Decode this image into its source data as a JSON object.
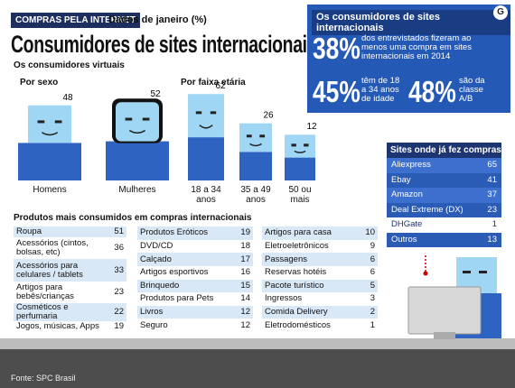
{
  "header": {
    "tag": "COMPRAS PELA INTERNET",
    "subtitle": "Dados de janeiro (%)",
    "title": "Consumidores de sites internacionais",
    "section": "Os consumidores virtuais",
    "logo": "G"
  },
  "by_sex": {
    "title": "Por sexo",
    "categories": [
      "Homens",
      "Mulheres"
    ],
    "values": [
      48,
      52
    ]
  },
  "by_age": {
    "title": "Por faixa etária",
    "categories": [
      "18 a 34 anos",
      "35 a 49 anos",
      "50 ou mais"
    ],
    "values": [
      62,
      26,
      12
    ]
  },
  "intl_box": {
    "title": "Os consumidores de sites internacionais",
    "stats": [
      {
        "big": "38%",
        "text": "dos entrevistados fizeram ao menos uma compra em sites internacionais em 2014"
      },
      {
        "big": "45%",
        "text": "têm de 18 a 34 anos de idade"
      },
      {
        "big": "48%",
        "text": "são da classe A/B"
      }
    ]
  },
  "sites": {
    "title": "Sites onde já fez compras",
    "rows": [
      [
        "Aliexpress",
        65
      ],
      [
        "Ebay",
        41
      ],
      [
        "Amazon",
        37
      ],
      [
        "Deal Extreme (DX)",
        23
      ],
      [
        "DHGate",
        1
      ],
      [
        "Outros",
        13
      ]
    ]
  },
  "products": {
    "title": "Produtos mais consumidos em compras internacionais",
    "columns": [
      [
        [
          "Roupa",
          51
        ],
        [
          "Acessórios (cintos, bolsas, etc)",
          36
        ],
        [
          "Acessórios para celulares / tablets",
          33
        ],
        [
          "Artigos para bebês/crianças",
          23
        ],
        [
          "Cosméticos e perfumaria",
          22
        ],
        [
          "Jogos, músicas, Apps",
          19
        ]
      ],
      [
        [
          "Produtos Eróticos",
          19
        ],
        [
          "DVD/CD",
          18
        ],
        [
          "Calçado",
          17
        ],
        [
          "Artigos esportivos",
          16
        ],
        [
          "Brinquedo",
          15
        ],
        [
          "Produtos para Pets",
          14
        ],
        [
          "Livros",
          12
        ],
        [
          "Seguro",
          12
        ]
      ],
      [
        [
          "Artigos para casa",
          10
        ],
        [
          "Eletroeletrônicos",
          9
        ],
        [
          "Passagens",
          6
        ],
        [
          "Reservas hotéis",
          6
        ],
        [
          "Pacote turístico",
          5
        ],
        [
          "Ingressos",
          3
        ],
        [
          "Comida Delivery",
          2
        ],
        [
          "Eletrodomésticos",
          1
        ]
      ]
    ]
  },
  "source": "Fonte: SPC Brasil"
}
